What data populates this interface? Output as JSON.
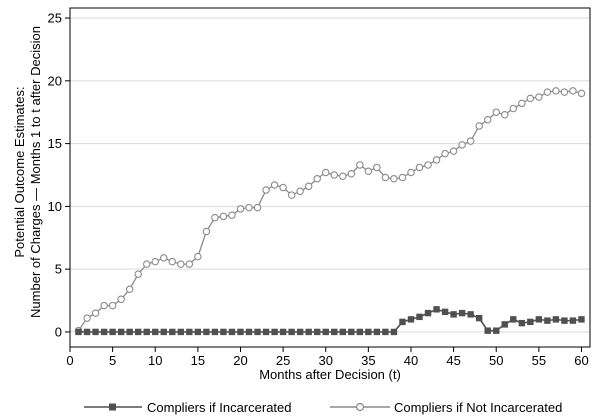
{
  "chart_data": {
    "type": "line",
    "xlabel": "Months after Decision (t)",
    "ylabel_lines": [
      "Potential Outcome Estimates:",
      "Number of Charges — Months 1 to t after Decision"
    ],
    "xlim": [
      0,
      61
    ],
    "ylim": [
      -1.2,
      25.8
    ],
    "xticks": [
      0,
      5,
      10,
      15,
      20,
      25,
      30,
      35,
      40,
      45,
      50,
      55,
      60
    ],
    "yticks": [
      0,
      5,
      10,
      15,
      20,
      25
    ],
    "grid": "horizontal",
    "legend_position": "bottom",
    "x": [
      1,
      2,
      3,
      4,
      5,
      6,
      7,
      8,
      9,
      10,
      11,
      12,
      13,
      14,
      15,
      16,
      17,
      18,
      19,
      20,
      21,
      22,
      23,
      24,
      25,
      26,
      27,
      28,
      29,
      30,
      31,
      32,
      33,
      34,
      35,
      36,
      37,
      38,
      39,
      40,
      41,
      42,
      43,
      44,
      45,
      46,
      47,
      48,
      49,
      50,
      51,
      52,
      53,
      54,
      55,
      56,
      57,
      58,
      59,
      60
    ],
    "series": [
      {
        "name": "Compliers if Incarcerated",
        "color": "#505050",
        "marker": "square",
        "values": [
          0,
          0,
          0,
          0,
          0,
          0,
          0,
          0,
          0,
          0,
          0,
          0,
          0,
          0,
          0,
          0,
          0,
          0,
          0,
          0,
          0,
          0,
          0,
          0,
          0,
          0,
          0,
          0,
          0,
          0,
          0,
          0,
          0,
          0,
          0,
          0,
          0,
          0,
          0.8,
          1.0,
          1.2,
          1.5,
          1.8,
          1.6,
          1.4,
          1.5,
          1.4,
          1.1,
          0.1,
          0.1,
          0.6,
          1.0,
          0.7,
          0.8,
          1.0,
          0.9,
          1.0,
          0.9,
          0.9,
          1.0
        ]
      },
      {
        "name": "Compliers if Not Incarcerated",
        "color": "#8a8a8a",
        "marker": "circle",
        "values": [
          0.1,
          1.1,
          1.5,
          2.1,
          2.1,
          2.6,
          3.4,
          4.6,
          5.4,
          5.6,
          5.9,
          5.6,
          5.4,
          5.4,
          6.0,
          8.0,
          9.1,
          9.2,
          9.3,
          9.8,
          9.9,
          9.9,
          11.3,
          11.7,
          11.5,
          10.9,
          11.2,
          11.6,
          12.2,
          12.7,
          12.5,
          12.4,
          12.6,
          13.3,
          12.8,
          13.1,
          12.3,
          12.2,
          12.3,
          12.7,
          13.1,
          13.3,
          13.7,
          14.2,
          14.4,
          14.9,
          15.2,
          16.4,
          16.9,
          17.5,
          17.3,
          17.8,
          18.2,
          18.6,
          18.7,
          19.1,
          19.2,
          19.1,
          19.2,
          19.0
        ]
      }
    ]
  }
}
